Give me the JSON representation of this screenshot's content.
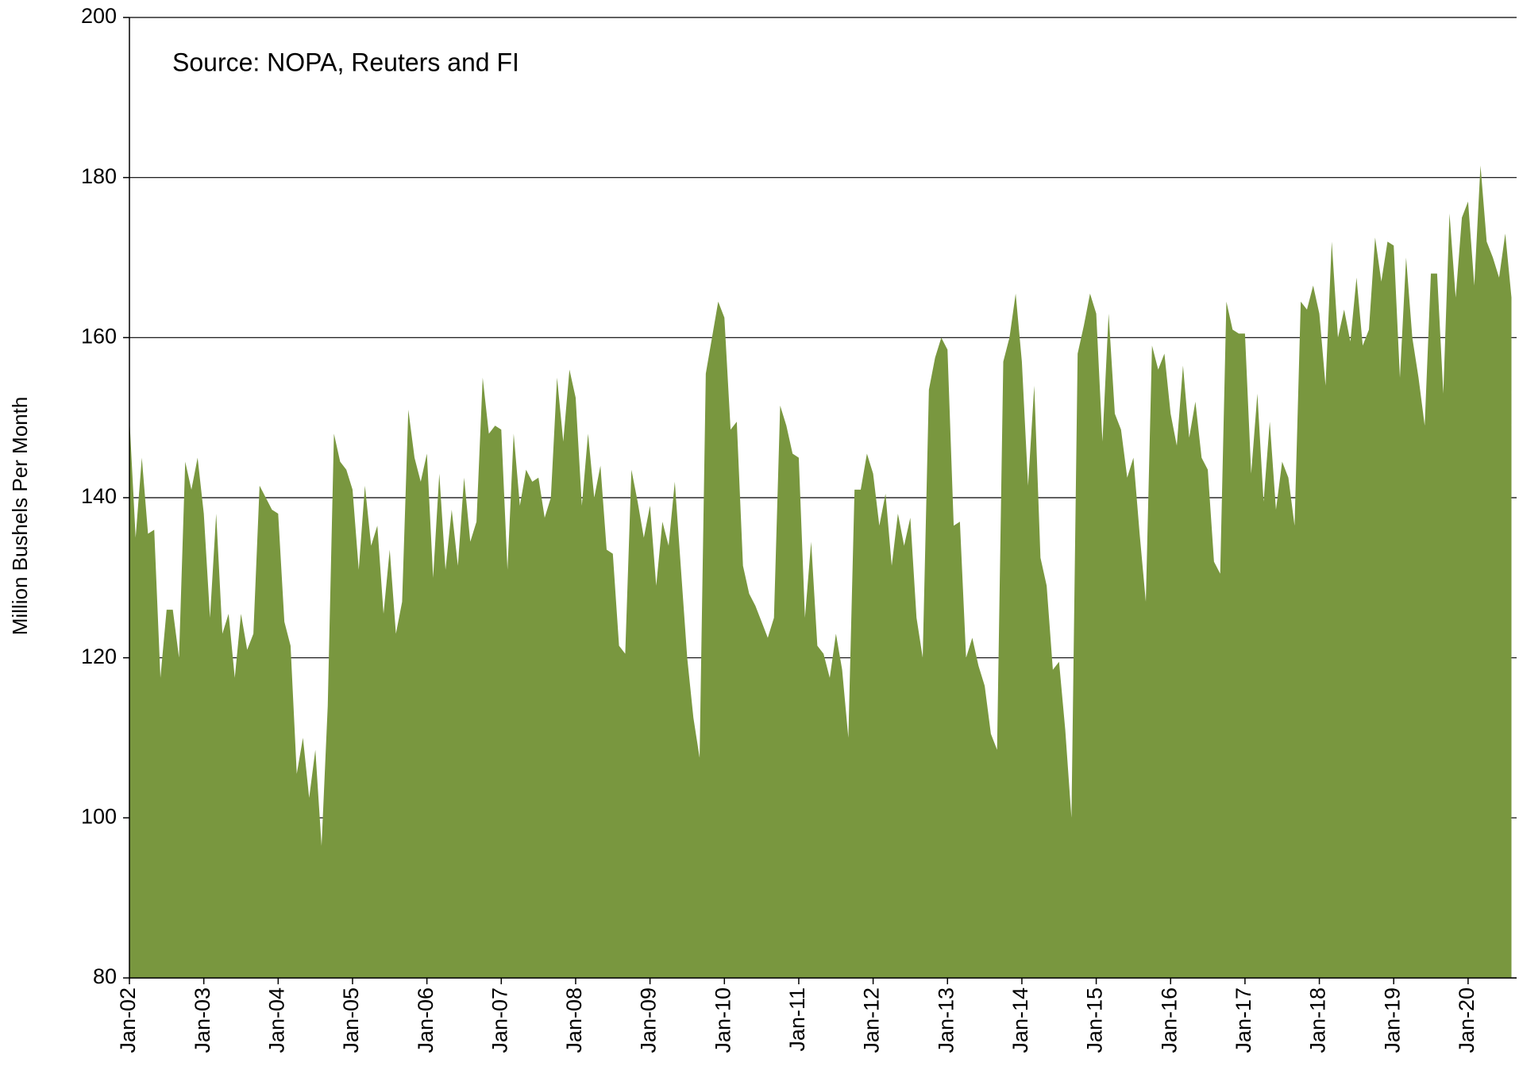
{
  "chart_data": {
    "type": "area",
    "annotation": "Source: NOPA, Reuters and FI",
    "y_label": "Million Bushels Per Month",
    "color": "#79973f",
    "grid": true,
    "ylim": [
      80,
      200
    ],
    "yticks": [
      80,
      100,
      120,
      140,
      160,
      180,
      200
    ],
    "categories": [
      "Jan-02",
      null,
      null,
      null,
      null,
      null,
      null,
      null,
      null,
      null,
      null,
      null,
      "Jan-03",
      null,
      null,
      null,
      null,
      null,
      null,
      null,
      null,
      null,
      null,
      null,
      "Jan-04",
      null,
      null,
      null,
      null,
      null,
      null,
      null,
      null,
      null,
      null,
      null,
      "Jan-05",
      null,
      null,
      null,
      null,
      null,
      null,
      null,
      null,
      null,
      null,
      null,
      "Jan-06",
      null,
      null,
      null,
      null,
      null,
      null,
      null,
      null,
      null,
      null,
      null,
      "Jan-07",
      null,
      null,
      null,
      null,
      null,
      null,
      null,
      null,
      null,
      null,
      null,
      "Jan-08",
      null,
      null,
      null,
      null,
      null,
      null,
      null,
      null,
      null,
      null,
      null,
      "Jan-09",
      null,
      null,
      null,
      null,
      null,
      null,
      null,
      null,
      null,
      null,
      null,
      "Jan-10",
      null,
      null,
      null,
      null,
      null,
      null,
      null,
      null,
      null,
      null,
      null,
      "Jan-11",
      null,
      null,
      null,
      null,
      null,
      null,
      null,
      null,
      null,
      null,
      null,
      "Jan-12",
      null,
      null,
      null,
      null,
      null,
      null,
      null,
      null,
      null,
      null,
      null,
      "Jan-13",
      null,
      null,
      null,
      null,
      null,
      null,
      null,
      null,
      null,
      null,
      null,
      "Jan-14",
      null,
      null,
      null,
      null,
      null,
      null,
      null,
      null,
      null,
      null,
      null,
      "Jan-15",
      null,
      null,
      null,
      null,
      null,
      null,
      null,
      null,
      null,
      null,
      null,
      "Jan-16",
      null,
      null,
      null,
      null,
      null,
      null,
      null,
      null,
      null,
      null,
      null,
      "Jan-17",
      null,
      null,
      null,
      null,
      null,
      null,
      null,
      null,
      null,
      null,
      null,
      "Jan-18",
      null,
      null,
      null,
      null,
      null,
      null,
      null,
      null,
      null,
      null,
      null,
      "Jan-19",
      null,
      null,
      null,
      null,
      null,
      null,
      null,
      null,
      null,
      null,
      null,
      "Jan-20",
      null,
      null,
      null,
      null,
      null,
      null,
      null
    ],
    "values": [
      150,
      135,
      145,
      135.5,
      136,
      117.5,
      126,
      126,
      120,
      144.5,
      141,
      145,
      138,
      125,
      138,
      123,
      125.5,
      117.5,
      125.5,
      121,
      123,
      141.5,
      140,
      138.5,
      138,
      124.5,
      121.5,
      105.5,
      110,
      102.5,
      108.5,
      96.5,
      114,
      148,
      144.5,
      143.5,
      141,
      131,
      141.5,
      134,
      136.5,
      125.5,
      133.5,
      123,
      127,
      151,
      145,
      142,
      145.5,
      130,
      143,
      131,
      138.5,
      131.5,
      142.5,
      134.5,
      137,
      155,
      148,
      149,
      148.5,
      131,
      148,
      139,
      143.5,
      142,
      142.5,
      137.5,
      140,
      155,
      147,
      156,
      152.5,
      139,
      148,
      140,
      144,
      133.5,
      133,
      121.5,
      120.5,
      143.5,
      139.5,
      135,
      139,
      129,
      137,
      134,
      142,
      131,
      120,
      112.5,
      107.5,
      155.5,
      160,
      164.5,
      162.5,
      148.5,
      149.5,
      131.5,
      128,
      126.5,
      124.5,
      122.5,
      125,
      151.5,
      149,
      145.5,
      145,
      125,
      134.5,
      121.5,
      120.5,
      117.5,
      123,
      118.5,
      110,
      141,
      141,
      145.5,
      143,
      136.5,
      140.5,
      131.5,
      138,
      134,
      137.5,
      125,
      120,
      153.5,
      157.5,
      160,
      158.5,
      136.5,
      137,
      120,
      122.5,
      119,
      116.5,
      110.5,
      108.5,
      157,
      160,
      165.5,
      157,
      141.5,
      154,
      132.5,
      129,
      118.5,
      119.5,
      111,
      100,
      158,
      161.5,
      165.5,
      163,
      147,
      163,
      150.5,
      148.5,
      142.5,
      145,
      135.5,
      127,
      159,
      156,
      158,
      150.5,
      146.5,
      156.5,
      147.5,
      152,
      145,
      143.5,
      132,
      130.5,
      164.5,
      161,
      160.5,
      160.5,
      143,
      153,
      139.5,
      149.5,
      138.5,
      144.5,
      142.5,
      136.5,
      164.5,
      163.5,
      166.5,
      163,
      154,
      172,
      160,
      163.5,
      159.5,
      167.5,
      159,
      161,
      172.5,
      167,
      172,
      171.5,
      155,
      170,
      160,
      155,
      149,
      168,
      168,
      153,
      175.5,
      165,
      175,
      177,
      166.5,
      181.5,
      172,
      170,
      167.5,
      173,
      165
    ]
  }
}
